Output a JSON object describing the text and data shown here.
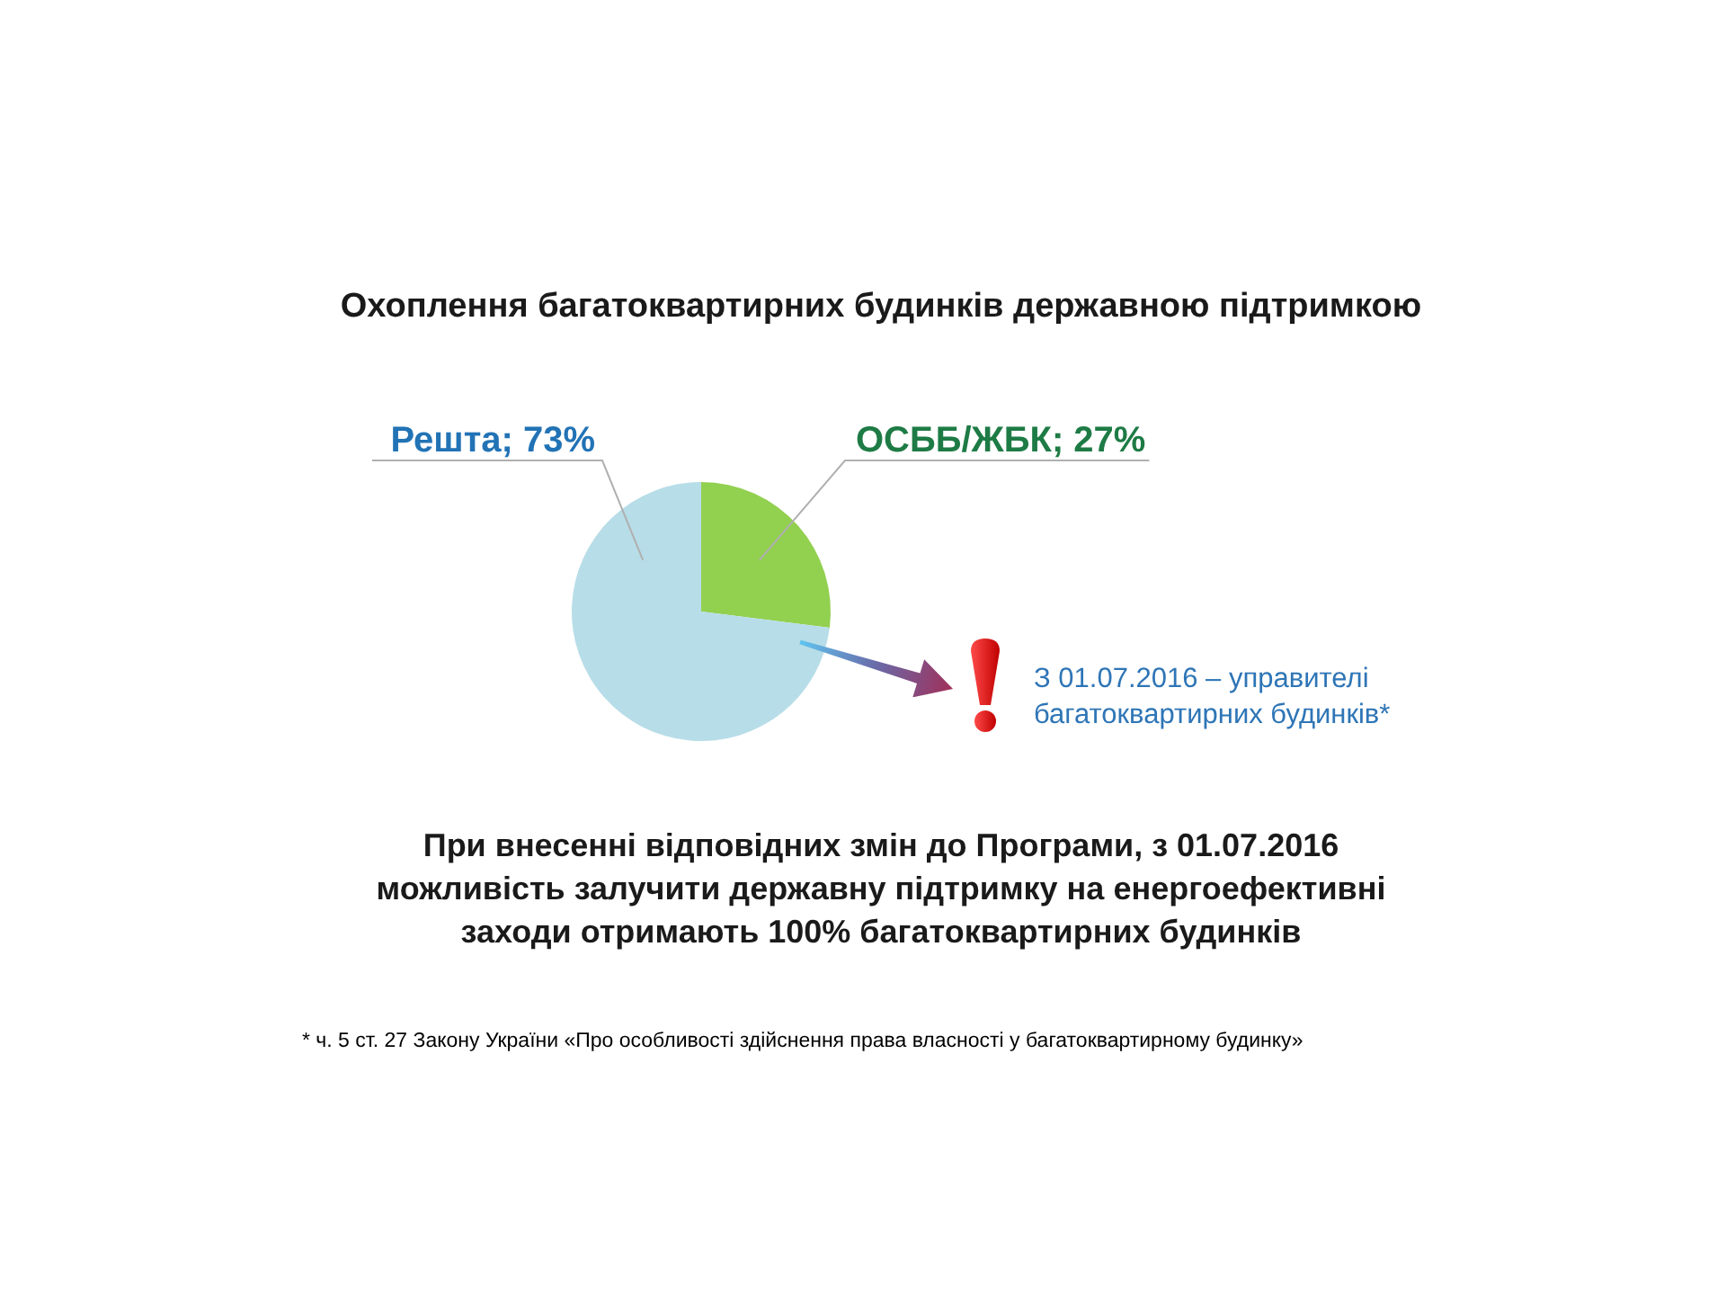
{
  "chart_data": {
    "type": "pie",
    "title": "Охоплення багатоквартирних будинків державною підтримкою",
    "categories": [
      "ОСББ/ЖБК",
      "Решта"
    ],
    "values": [
      27,
      73
    ],
    "colors": [
      "#92d050",
      "#b7dde8"
    ],
    "value_labels": [
      "27%",
      "73%"
    ],
    "annotations": [
      "З 01.07.2016 – управителі багатоквартирних будинків*",
      "При внесенні відповідних змін до Програми, з 01.07.2016 можливість залучити державну підтримку на енергоефективні заходи отримають 100% багатоквартирних будинків",
      "* ч. 5 ст. 27 Закону України «Про особливості здійснення права власності у багатоквартирному будинку»"
    ]
  }
}
